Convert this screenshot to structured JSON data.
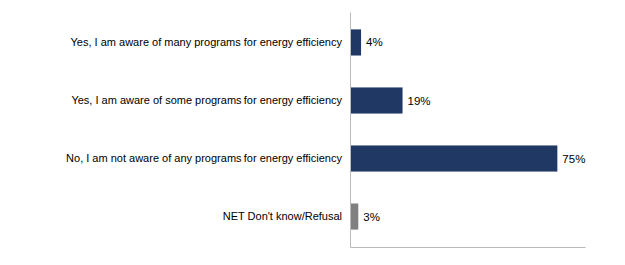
{
  "chart_data": {
    "type": "bar",
    "orientation": "horizontal",
    "categories": [
      "Yes, I am aware of many programs for energy efficiency",
      "Yes, I am aware of some programs for energy efficiency",
      "No, I am not aware of any programs for energy efficiency",
      "NET Don't know/Refusal"
    ],
    "values": [
      4,
      19,
      75,
      3
    ],
    "value_labels": [
      "4%",
      "19%",
      "75%",
      "3%"
    ],
    "colors": [
      "#1f3864",
      "#1f3864",
      "#1f3864",
      "#808080"
    ],
    "xlim": [
      0,
      85
    ],
    "data_labels": true,
    "tick_labels": "y"
  }
}
